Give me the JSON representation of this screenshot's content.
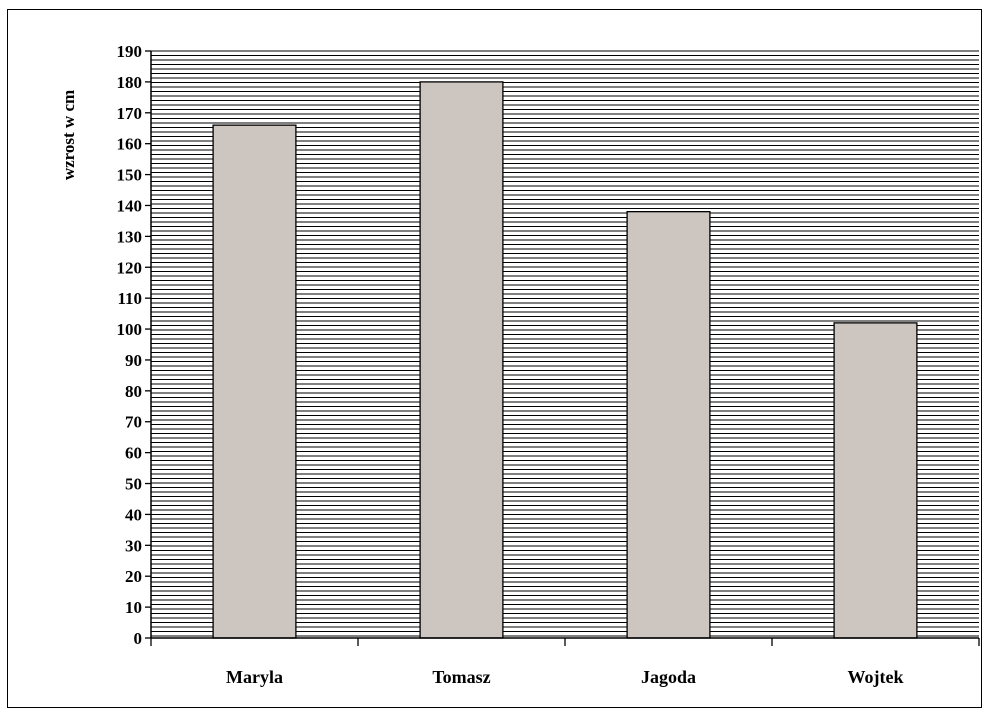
{
  "chart_data": {
    "type": "bar",
    "title": "",
    "xlabel": "",
    "ylabel": "wzrost w cm",
    "categories": [
      "Maryla",
      "Tomasz",
      "Jagoda",
      "Wojtek"
    ],
    "values": [
      166,
      180,
      138,
      102
    ],
    "ylim": [
      0,
      190
    ],
    "ytick_step": 10,
    "grid": true,
    "grid_style": "dense horizontal lines",
    "legend": "none",
    "bar_color": "#cdc5c0",
    "plot_background": "#ffffff",
    "line_color": "#000000"
  }
}
